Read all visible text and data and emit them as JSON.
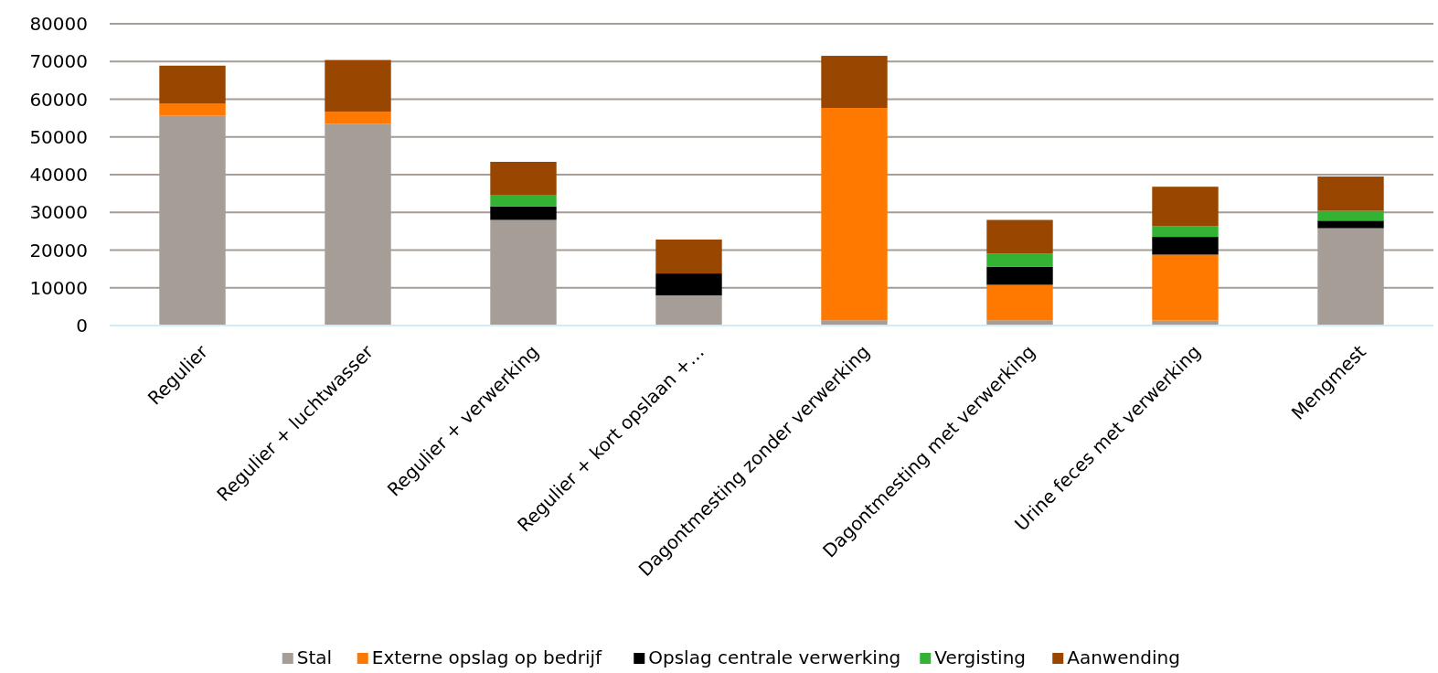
{
  "chart_data": {
    "type": "bar",
    "stacked": true,
    "categories": [
      "Regulier",
      "Regulier + luchtwasser",
      "Regulier + verwerking",
      "Regulier + kort opslaan +…",
      "Dagontmesting zonder verwerking",
      "Dagontmesting met verwerking",
      "Urine feces met verwerking",
      "Mengmest"
    ],
    "series": [
      {
        "name": "Stal",
        "color": "#a59d96",
        "values": [
          55600,
          53500,
          28000,
          8000,
          1400,
          1400,
          1300,
          25800
        ]
      },
      {
        "name": "Externe opslag op bedrijf",
        "color": "#ff7900",
        "values": [
          3200,
          3200,
          0,
          0,
          56300,
          9400,
          17500,
          0
        ]
      },
      {
        "name": "Opslag centrale verwerking",
        "color": "#000000",
        "values": [
          0,
          0,
          3600,
          5800,
          0,
          4800,
          4700,
          2000
        ]
      },
      {
        "name": "Vergisting",
        "color": "#34b233",
        "values": [
          0,
          0,
          2900,
          0,
          0,
          3500,
          2800,
          2600
        ]
      },
      {
        "name": "Aanwending",
        "color": "#994700",
        "values": [
          10100,
          13700,
          8900,
          9000,
          13800,
          8900,
          10500,
          9100
        ]
      }
    ],
    "ylim": [
      0,
      80000
    ],
    "yticks": [
      0,
      10000,
      20000,
      30000,
      40000,
      50000,
      60000,
      70000,
      80000
    ],
    "grid": "y",
    "legend": "bottom"
  }
}
